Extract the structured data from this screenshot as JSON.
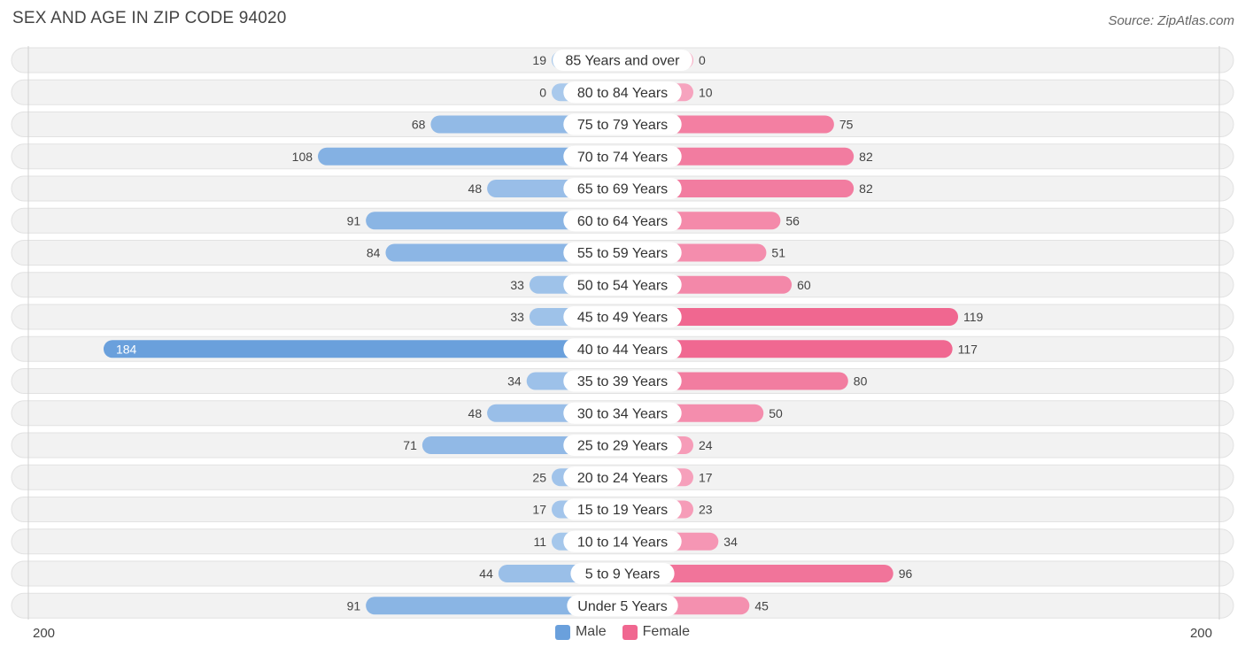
{
  "title": "SEX AND AGE IN ZIP CODE 94020",
  "source": "Source: ZipAtlas.com",
  "axis": {
    "left_label": "200",
    "right_label": "200"
  },
  "legend": {
    "male_label": "Male",
    "female_label": "Female"
  },
  "colors": {
    "male_dark": "#6aa0dc",
    "male_light": "#a9c9ec",
    "female_dark": "#f06790",
    "female_light": "#f7a9c2",
    "row_bg": "#f2f2f2"
  },
  "chart_data": {
    "type": "bar",
    "orientation": "horizontal-diverging",
    "title": "SEX AND AGE IN ZIP CODE 94020",
    "xlim": [
      -200,
      200
    ],
    "categories": [
      "85 Years and over",
      "80 to 84 Years",
      "75 to 79 Years",
      "70 to 74 Years",
      "65 to 69 Years",
      "60 to 64 Years",
      "55 to 59 Years",
      "50 to 54 Years",
      "45 to 49 Years",
      "40 to 44 Years",
      "35 to 39 Years",
      "30 to 34 Years",
      "25 to 29 Years",
      "20 to 24 Years",
      "15 to 19 Years",
      "10 to 14 Years",
      "5 to 9 Years",
      "Under 5 Years"
    ],
    "series": [
      {
        "name": "Male",
        "values": [
          19,
          0,
          68,
          108,
          48,
          91,
          84,
          33,
          33,
          184,
          34,
          48,
          71,
          25,
          17,
          11,
          44,
          91
        ]
      },
      {
        "name": "Female",
        "values": [
          0,
          10,
          75,
          82,
          82,
          56,
          51,
          60,
          119,
          117,
          80,
          50,
          24,
          17,
          23,
          34,
          96,
          45
        ]
      }
    ],
    "legend_position": "bottom-center"
  }
}
